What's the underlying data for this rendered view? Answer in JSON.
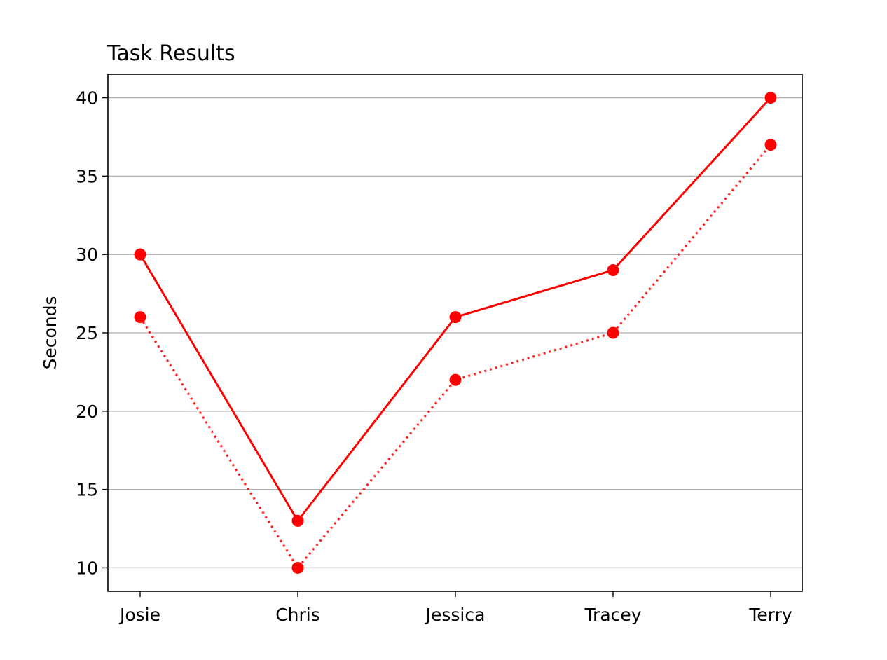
{
  "chart_data": {
    "type": "line",
    "title": "Task Results",
    "xlabel": "",
    "ylabel": "Seconds",
    "categories": [
      "Josie",
      "Chris",
      "Jessica",
      "Tracey",
      "Terry"
    ],
    "series": [
      {
        "values": [
          30,
          13,
          26,
          29,
          40
        ],
        "color": "#ff0000",
        "line_style": "solid",
        "marker": "circle"
      },
      {
        "values": [
          26,
          10,
          22,
          25,
          37
        ],
        "color": "#ff0000",
        "line_style": "dotted",
        "marker": "circle"
      }
    ],
    "ylim": [
      8.5,
      41.5
    ],
    "yticks": [
      10,
      15,
      20,
      25,
      30,
      35,
      40
    ],
    "grid": "y-axis",
    "legend": "none"
  }
}
